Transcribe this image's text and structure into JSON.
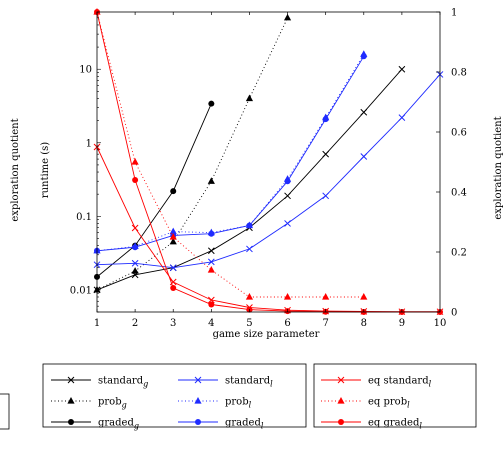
{
  "chart_data": {
    "type": "line",
    "xlabel": "game size parameter",
    "ylabel_left": "runtime (s)",
    "ylabel_left_outer": "exploration quotient",
    "ylabel_right": "exploration quotient",
    "left_axis": {
      "scale": "log",
      "ylim": [
        0.005,
        60
      ],
      "ticks": [
        0.01,
        0.1,
        1,
        10
      ],
      "tick_labels": [
        "0.01",
        "0.1",
        "1",
        "10"
      ]
    },
    "right_axis": {
      "scale": "linear",
      "ylim": [
        0,
        1
      ],
      "ticks": [
        0,
        0.2,
        0.4,
        0.6,
        0.8,
        1
      ],
      "tick_labels": [
        "0",
        "0.2",
        "0.4",
        "0.6",
        "0.8",
        "1"
      ]
    },
    "x_ticks": [
      1,
      2,
      3,
      4,
      5,
      6,
      7,
      8,
      9,
      10
    ],
    "x_tick_labels": [
      "1",
      "2",
      "3",
      "4",
      "5",
      "6",
      "7",
      "8",
      "9",
      "10"
    ],
    "xlim": [
      1,
      10
    ],
    "grid": false,
    "legend_placement": "bottom",
    "series": [
      {
        "name": "standard",
        "subscript": "g",
        "axis": "left",
        "color": "#000000",
        "marker": "cross",
        "dash": "solid",
        "x": [
          1,
          2,
          3,
          4,
          5,
          6,
          7,
          8,
          9
        ],
        "y": [
          0.01,
          0.016,
          0.02,
          0.034,
          0.07,
          0.19,
          0.7,
          2.6,
          10
        ]
      },
      {
        "name": "prob",
        "subscript": "g",
        "axis": "left",
        "color": "#000000",
        "marker": "triangle",
        "dash": "dotted",
        "x": [
          1,
          2,
          3,
          4,
          5,
          6
        ],
        "y": [
          0.01,
          0.018,
          0.045,
          0.3,
          4,
          50
        ]
      },
      {
        "name": "graded",
        "subscript": "g",
        "axis": "left",
        "color": "#000000",
        "marker": "circle",
        "dash": "solid",
        "x": [
          1,
          2,
          3,
          4
        ],
        "y": [
          0.015,
          0.04,
          0.22,
          3.4
        ]
      },
      {
        "name": "standard",
        "subscript": "l",
        "axis": "left",
        "color": "#1f2bff",
        "marker": "cross",
        "dash": "solid",
        "x": [
          1,
          2,
          3,
          4,
          5,
          6,
          7,
          8,
          9,
          10
        ],
        "y": [
          0.022,
          0.023,
          0.02,
          0.024,
          0.036,
          0.08,
          0.19,
          0.65,
          2.2,
          8.5
        ]
      },
      {
        "name": "prob",
        "subscript": "l",
        "axis": "left",
        "color": "#1f2bff",
        "marker": "triangle",
        "dash": "dotted",
        "x": [
          1,
          2,
          3,
          4,
          5,
          6,
          7,
          8
        ],
        "y": [
          0.034,
          0.039,
          0.062,
          0.06,
          0.075,
          0.32,
          2.2,
          16
        ]
      },
      {
        "name": "graded",
        "subscript": "l",
        "axis": "left",
        "color": "#1f2bff",
        "marker": "circle",
        "dash": "solid",
        "x": [
          1,
          2,
          3,
          4,
          5,
          6,
          7,
          8
        ],
        "y": [
          0.034,
          0.038,
          0.055,
          0.058,
          0.075,
          0.3,
          2.1,
          15
        ]
      },
      {
        "name": "eq standard",
        "subscript": "l",
        "axis": "right",
        "color": "#ff0000",
        "marker": "cross",
        "dash": "solid",
        "x": [
          1,
          2,
          3,
          4,
          5,
          6,
          7,
          8,
          9,
          10
        ],
        "y": [
          0.55,
          0.28,
          0.1,
          0.04,
          0.015,
          0.006,
          0.003,
          0.002,
          0.001,
          0.001
        ]
      },
      {
        "name": "eq prob",
        "subscript": "l",
        "axis": "right",
        "color": "#ff0000",
        "marker": "triangle",
        "dash": "dotted",
        "x": [
          1,
          2,
          3,
          4,
          5,
          6,
          7,
          8
        ],
        "y": [
          1.0,
          0.5,
          0.25,
          0.14,
          0.05,
          0.05,
          0.05,
          0.05
        ]
      },
      {
        "name": "eq graded",
        "subscript": "l",
        "axis": "right",
        "color": "#ff0000",
        "marker": "circle",
        "dash": "solid",
        "x": [
          1,
          2,
          3,
          4,
          5,
          6,
          7,
          8,
          9,
          10
        ],
        "y": [
          1.0,
          0.44,
          0.08,
          0.025,
          0.008,
          0.003,
          0.001,
          0.0,
          0.0,
          0.0
        ]
      }
    ]
  }
}
